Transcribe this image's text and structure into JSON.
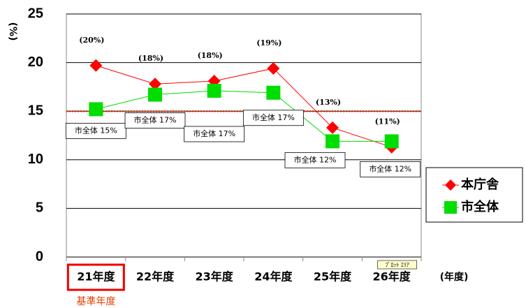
{
  "chart_data": {
    "type": "line",
    "y_label": "(%)",
    "x_label": "(年度)",
    "categories": [
      "21年度",
      "22年度",
      "23年度",
      "24年度",
      "25年度",
      "26年度"
    ],
    "series": [
      {
        "name": "本庁舎",
        "color": "#ff0000",
        "marker": "diamond",
        "values": [
          19.7,
          17.8,
          18.1,
          19.4,
          13.3,
          11.3
        ],
        "value_labels": [
          "(20%)",
          "(18%)",
          "(18%)",
          "(19%)",
          "(13%)",
          "(11%)"
        ]
      },
      {
        "name": "市全体",
        "color": "#00dd00",
        "marker": "square",
        "values": [
          15.2,
          16.7,
          17.1,
          16.9,
          11.9,
          11.9
        ],
        "value_labels": [
          "市全体 15%",
          "市全体 17%",
          "市全体 17%",
          "市全体 17%",
          "市全体 12%",
          "市全体 12%"
        ]
      }
    ],
    "reference_line": 15,
    "highlight_label": "基準年度",
    "tooltip": "ﾌﾟﾛｯﾄ ｴﾘｱ",
    "ylim": [
      0,
      25
    ],
    "yticks": [
      0,
      5,
      10,
      15,
      20,
      25
    ],
    "grid": true,
    "legend": "right"
  }
}
